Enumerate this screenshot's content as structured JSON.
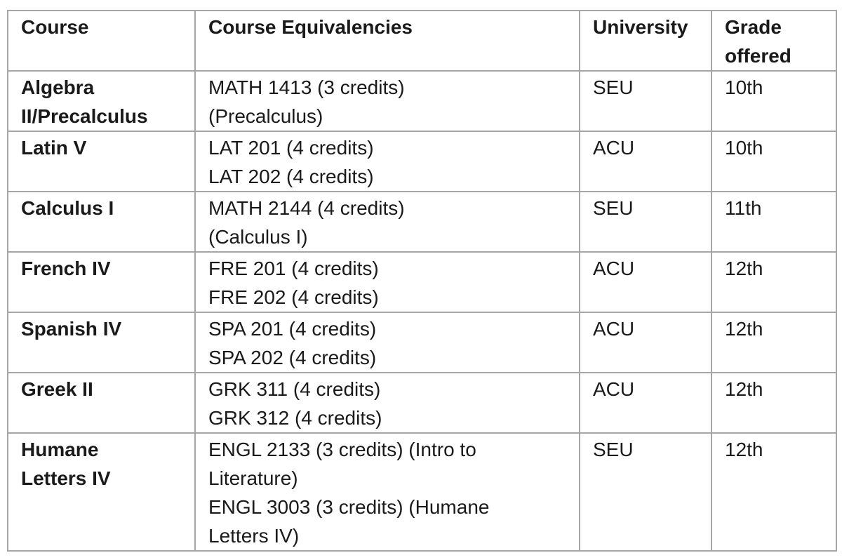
{
  "table": {
    "columns": [
      {
        "label": "Course"
      },
      {
        "label": "Course Equivalencies"
      },
      {
        "label": "University"
      },
      {
        "label": "Grade offered"
      }
    ],
    "rows": [
      {
        "course": "Algebra II/Precalculus",
        "equivalencies": [
          "MATH 1413 (3 credits)",
          "(Precalculus)"
        ],
        "university": "SEU",
        "grade": "10th"
      },
      {
        "course": "Latin V",
        "equivalencies": [
          "LAT 201 (4 credits)",
          "LAT 202 (4 credits)"
        ],
        "university": "ACU",
        "grade": "10th"
      },
      {
        "course": "Calculus I",
        "equivalencies": [
          "MATH 2144 (4 credits)",
          "(Calculus I)"
        ],
        "university": "SEU",
        "grade": "11th"
      },
      {
        "course": "French IV",
        "equivalencies": [
          "FRE 201 (4 credits)",
          "FRE 202 (4 credits)"
        ],
        "university": "ACU",
        "grade": "12th"
      },
      {
        "course": "Spanish IV",
        "equivalencies": [
          "SPA 201 (4 credits)",
          "SPA 202 (4 credits)"
        ],
        "university": "ACU",
        "grade": "12th"
      },
      {
        "course": "Greek II",
        "equivalencies": [
          "GRK 311 (4 credits)",
          "GRK 312 (4 credits)"
        ],
        "university": "ACU",
        "grade": "12th"
      },
      {
        "course": "Humane Letters IV",
        "equivalencies": [
          "ENGL 2133 (3 credits) (Intro to Literature)",
          "ENGL 3003 (3 credits) (Humane Letters IV)"
        ],
        "university": "SEU",
        "grade": "12th"
      }
    ]
  },
  "colors": {
    "border": "#a6a6a6",
    "text": "#1a1a1a",
    "background": "#ffffff"
  }
}
